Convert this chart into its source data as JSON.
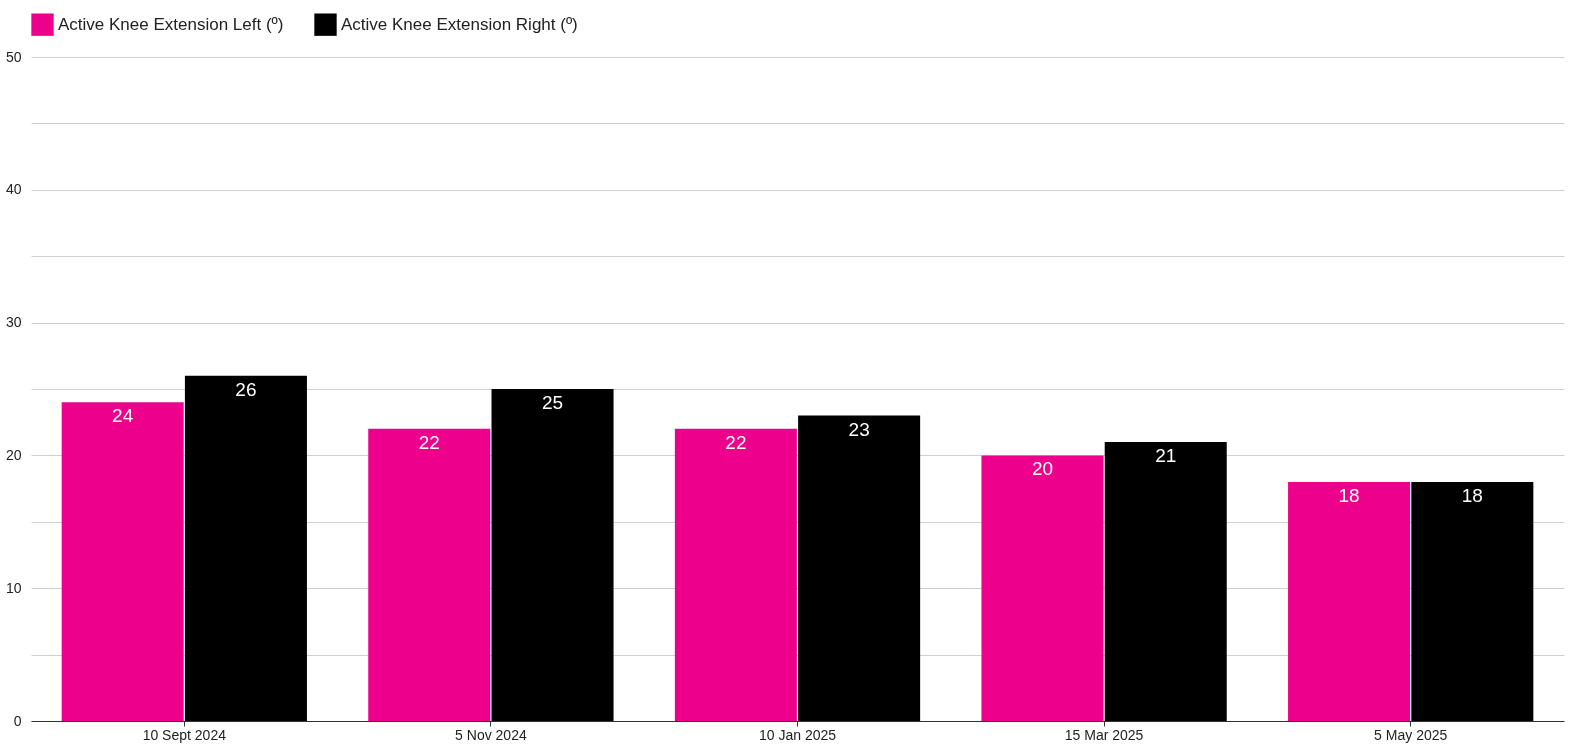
{
  "chart_data": {
    "type": "bar",
    "categories": [
      "10 Sept 2024",
      "5 Nov 2024",
      "10 Jan 2025",
      "15 Mar 2025",
      "5 May 2025"
    ],
    "series": [
      {
        "name": "Active Knee Extension Left (º)",
        "color": "#ec008c",
        "values": [
          24,
          22,
          22,
          20,
          18
        ]
      },
      {
        "name": "Active Knee Extension Right (º)",
        "color": "#000000",
        "values": [
          26,
          25,
          23,
          21,
          18
        ]
      }
    ],
    "ylim": [
      0,
      50
    ],
    "yticks": [
      0,
      {
        "value": 5,
        "label": null
      },
      10,
      {
        "value": 15,
        "label": null
      },
      20,
      {
        "value": 25,
        "label": null
      },
      30,
      {
        "value": 35,
        "label": null
      },
      40,
      {
        "value": 45,
        "label": null
      },
      50
    ],
    "grid": "y",
    "legend": "top left",
    "data_labels": true
  }
}
